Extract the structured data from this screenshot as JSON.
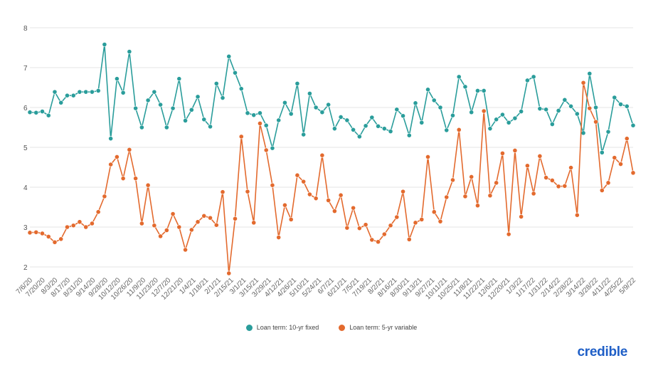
{
  "chart_data": {
    "type": "line",
    "ylim": [
      2,
      8
    ],
    "yticks": [
      2,
      3,
      4,
      5,
      6,
      7,
      8
    ],
    "grid": true,
    "legend_position": "bottom-center",
    "tick_labels": [
      "7/6/20",
      "7/20/20",
      "8/3/20",
      "8/17/20",
      "8/31/20",
      "9/14/20",
      "9/28/20",
      "10/12/20",
      "10/26/20",
      "11/9/20",
      "11/23/20",
      "12/7/20",
      "12/21/20",
      "1/4/21",
      "1/18/21",
      "2/1/21",
      "2/15/21",
      "3/1/21",
      "3/15/21",
      "3/29/21",
      "4/12/21",
      "4/26/21",
      "5/10/21",
      "5/24/21",
      "6/7/21",
      "6/21/21",
      "7/5/21",
      "7/19/21",
      "8/2/21",
      "8/16/21",
      "8/30/21",
      "9/13/21",
      "9/27/21",
      "10/11/21",
      "10/25/21",
      "11/8/21",
      "11/22/21",
      "12/6/21",
      "12/20/21",
      "1/3/22",
      "1/17/22",
      "1/31/22",
      "2/14/22",
      "2/28/22",
      "3/14/22",
      "3/28/22",
      "4/11/22",
      "4/25/22",
      "5/9/22"
    ],
    "series": [
      {
        "name": "Loan term: 10-yr fixed",
        "color": "#2a9d9b",
        "values": [
          5.88,
          5.87,
          5.9,
          5.8,
          6.39,
          6.12,
          6.3,
          6.3,
          6.39,
          6.39,
          6.39,
          6.42,
          7.58,
          5.22,
          6.72,
          6.37,
          7.4,
          5.98,
          5.5,
          6.18,
          6.39,
          6.07,
          5.5,
          5.98,
          6.72,
          5.67,
          5.94,
          6.27,
          5.7,
          5.52,
          6.6,
          6.24,
          7.28,
          6.87,
          6.47,
          5.86,
          5.81,
          5.86,
          5.55,
          4.98,
          5.68,
          6.12,
          5.84,
          6.6,
          5.32,
          6.35,
          6.0,
          5.88,
          6.07,
          5.47,
          5.76,
          5.68,
          5.44,
          5.27,
          5.54,
          5.75,
          5.53,
          5.47,
          5.4,
          5.95,
          5.79,
          5.3,
          6.11,
          5.62,
          6.45,
          6.18,
          6.0,
          5.43,
          5.8,
          6.77,
          6.52,
          5.88,
          6.42,
          6.42,
          5.47,
          5.7,
          5.82,
          5.62,
          5.73,
          5.9,
          6.68,
          6.77,
          5.97,
          5.95,
          5.58,
          5.92,
          6.19,
          6.03,
          5.84,
          5.36,
          6.85,
          6.0,
          4.87,
          5.39,
          6.25,
          6.08,
          6.03,
          5.55
        ]
      },
      {
        "name": "Loan term: 5-yr variable",
        "color": "#e36a2e",
        "values": [
          2.86,
          2.87,
          2.84,
          2.76,
          2.62,
          2.7,
          3.0,
          3.04,
          3.13,
          3.0,
          3.09,
          3.38,
          3.77,
          4.57,
          4.76,
          4.22,
          4.94,
          4.22,
          3.09,
          4.05,
          3.04,
          2.77,
          2.92,
          3.33,
          3.0,
          2.43,
          2.93,
          3.13,
          3.28,
          3.23,
          3.05,
          3.88,
          1.84,
          3.21,
          5.27,
          3.89,
          3.11,
          5.6,
          4.93,
          4.05,
          2.74,
          3.55,
          3.19,
          4.3,
          4.14,
          3.82,
          3.72,
          4.8,
          3.67,
          3.4,
          3.8,
          2.98,
          3.48,
          2.97,
          3.06,
          2.68,
          2.63,
          2.82,
          3.04,
          3.25,
          3.89,
          2.69,
          3.11,
          3.19,
          4.76,
          3.38,
          3.14,
          3.75,
          4.18,
          5.44,
          3.77,
          4.26,
          3.54,
          5.91,
          3.79,
          4.11,
          4.85,
          2.82,
          4.92,
          3.26,
          4.54,
          3.84,
          4.78,
          4.24,
          4.17,
          4.02,
          4.03,
          4.49,
          3.3,
          6.62,
          5.98,
          5.64,
          3.92,
          4.11,
          4.74,
          4.58,
          5.22,
          4.36
        ]
      }
    ]
  },
  "brand": {
    "text": "credible",
    "color": "#1f5fc7"
  }
}
